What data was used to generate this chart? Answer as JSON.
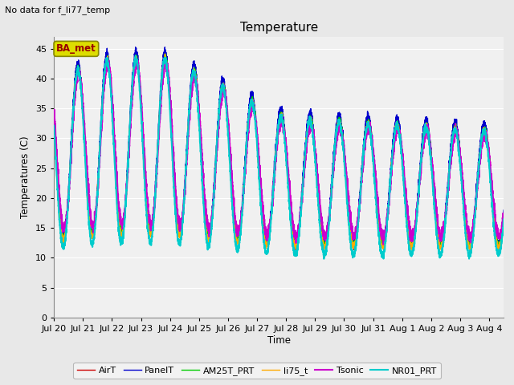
{
  "title": "Temperature",
  "xlabel": "Time",
  "ylabel": "Temperatures (C)",
  "no_data_text": "No data for f_li77_temp",
  "ba_met_label": "BA_met",
  "ylim": [
    0,
    47
  ],
  "yticks": [
    0,
    5,
    10,
    15,
    20,
    25,
    30,
    35,
    40,
    45
  ],
  "x_labels": [
    "Jul 20",
    "Jul 21",
    "Jul 22",
    "Jul 23",
    "Jul 24",
    "Jul 25",
    "Jul 26",
    "Jul 27",
    "Jul 28",
    "Jul 29",
    "Jul 30",
    "Jul 31",
    "Aug 1",
    "Aug 2",
    "Aug 3",
    "Aug 4"
  ],
  "series": [
    {
      "name": "AirT",
      "color": "#cc0000",
      "lw": 1.0,
      "ls": "-"
    },
    {
      "name": "PanelT",
      "color": "#0000cc",
      "lw": 1.0,
      "ls": "-"
    },
    {
      "name": "AM25T_PRT",
      "color": "#00cc00",
      "lw": 1.0,
      "ls": "-"
    },
    {
      "name": "li75_t",
      "color": "#ffaa00",
      "lw": 1.0,
      "ls": "-"
    },
    {
      "name": "Tsonic",
      "color": "#cc00cc",
      "lw": 1.5,
      "ls": "-"
    },
    {
      "name": "NR01_PRT",
      "color": "#00cccc",
      "lw": 1.5,
      "ls": "-"
    }
  ],
  "bg_color": "#e8e8e8",
  "plot_bg_color": "#f0f0f0",
  "grid_color": "#ffffff"
}
